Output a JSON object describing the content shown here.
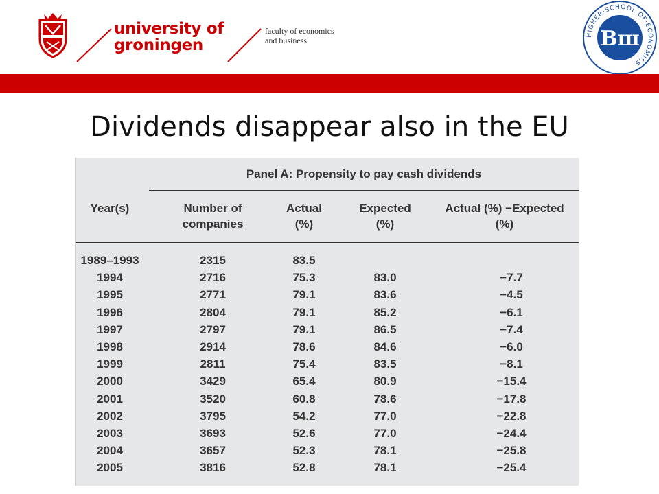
{
  "header": {
    "university_line1": "university of",
    "university_line2": "groningen",
    "faculty_line1": "faculty of economics",
    "faculty_line2": "and business",
    "hse_ring_text": "HIGHER·SCHOOL·OF·ECONOMICS",
    "hse_monogram": "Вш",
    "brand_red": "#cc0000",
    "hse_blue": "#1a4fa0"
  },
  "slide": {
    "title": "Dividends disappear also in the EU"
  },
  "table": {
    "panel_title": "Panel A: Propensity to pay cash dividends",
    "headers": {
      "year": "Year(s)",
      "number_l1": "Number of",
      "number_l2": "companies",
      "actual_l1": "Actual",
      "actual_l2": "(%)",
      "expected_l1": "Expected",
      "expected_l2": "(%)",
      "diff_l1": "Actual (%) −Expected",
      "diff_l2": "(%)"
    },
    "rows": [
      {
        "year": "1989–1993",
        "companies": "2315",
        "actual": "83.5",
        "expected": "",
        "diff": ""
      },
      {
        "year": "1994",
        "companies": "2716",
        "actual": "75.3",
        "expected": "83.0",
        "diff": "−7.7"
      },
      {
        "year": "1995",
        "companies": "2771",
        "actual": "79.1",
        "expected": "83.6",
        "diff": "−4.5"
      },
      {
        "year": "1996",
        "companies": "2804",
        "actual": "79.1",
        "expected": "85.2",
        "diff": "−6.1"
      },
      {
        "year": "1997",
        "companies": "2797",
        "actual": "79.1",
        "expected": "86.5",
        "diff": "−7.4"
      },
      {
        "year": "1998",
        "companies": "2914",
        "actual": "78.6",
        "expected": "84.6",
        "diff": "−6.0"
      },
      {
        "year": "1999",
        "companies": "2811",
        "actual": "75.4",
        "expected": "83.5",
        "diff": "−8.1"
      },
      {
        "year": "2000",
        "companies": "3429",
        "actual": "65.4",
        "expected": "80.9",
        "diff": "−15.4"
      },
      {
        "year": "2001",
        "companies": "3520",
        "actual": "60.8",
        "expected": "78.6",
        "diff": "−17.8"
      },
      {
        "year": "2002",
        "companies": "3795",
        "actual": "54.2",
        "expected": "77.0",
        "diff": "−22.8"
      },
      {
        "year": "2003",
        "companies": "3693",
        "actual": "52.6",
        "expected": "77.0",
        "diff": "−24.4"
      },
      {
        "year": "2004",
        "companies": "3657",
        "actual": "52.3",
        "expected": "78.1",
        "diff": "−25.8"
      },
      {
        "year": "2005",
        "companies": "3816",
        "actual": "52.8",
        "expected": "78.1",
        "diff": "−25.4"
      }
    ]
  }
}
